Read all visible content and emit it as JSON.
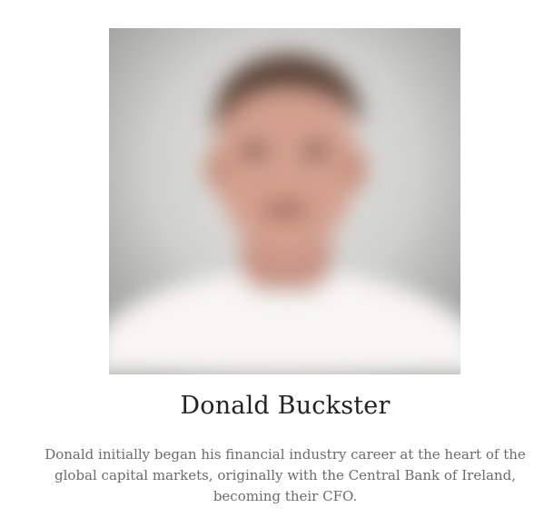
{
  "profile": {
    "photo_icon": "portrait-photo",
    "name": "Donald Buckster",
    "bio": "Donald initially began his financial industry career at the heart of the global capital markets, originally with the Central Bank of Ireland, becoming their CFO."
  },
  "colors": {
    "name_text": "#222222",
    "bio_text": "#6b6b6b",
    "background": "#ffffff"
  }
}
